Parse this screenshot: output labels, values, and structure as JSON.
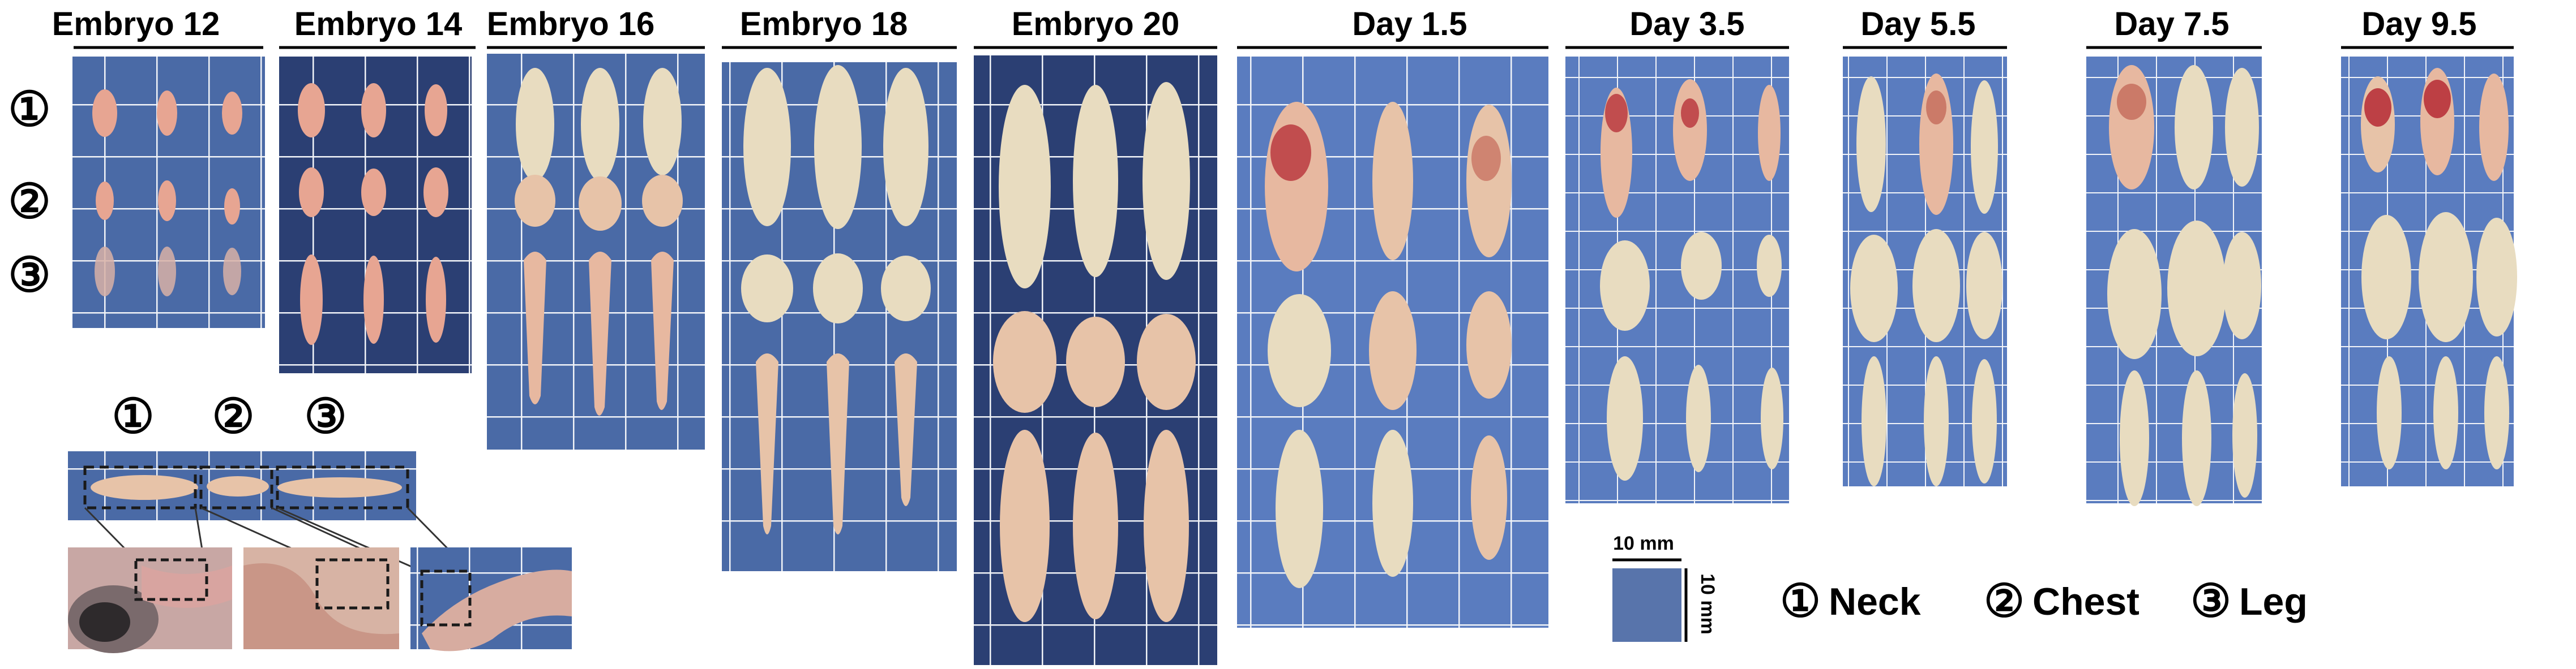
{
  "panels": [
    {
      "label": "Embryo 12"
    },
    {
      "label": "Embryo 14"
    },
    {
      "label": "Embryo 16"
    },
    {
      "label": "Embryo 18"
    },
    {
      "label": "Embryo 20"
    },
    {
      "label": "Day 1.5"
    },
    {
      "label": "Day 3.5"
    },
    {
      "label": "Day 5.5"
    },
    {
      "label": "Day 7.5"
    },
    {
      "label": "Day 9.5"
    }
  ],
  "row_markers": [
    "①",
    "②",
    "③"
  ],
  "inset_markers": [
    "①",
    "②",
    "③"
  ],
  "scale_bar": {
    "horizontal_label": "10 mm",
    "vertical_label": "10 mm"
  },
  "legend": [
    {
      "marker": "①",
      "text": "Neck"
    },
    {
      "marker": "②",
      "text": "Chest"
    },
    {
      "marker": "③",
      "text": "Leg"
    }
  ],
  "colors": {
    "board_blue": "#4a6aa6",
    "board_dark": "#2b3f73",
    "grid_line": "#f2f4f8",
    "tissue_pink": "#e7a592",
    "tissue_cream": "#e8dcc0",
    "tissue_red": "#b8323a"
  }
}
